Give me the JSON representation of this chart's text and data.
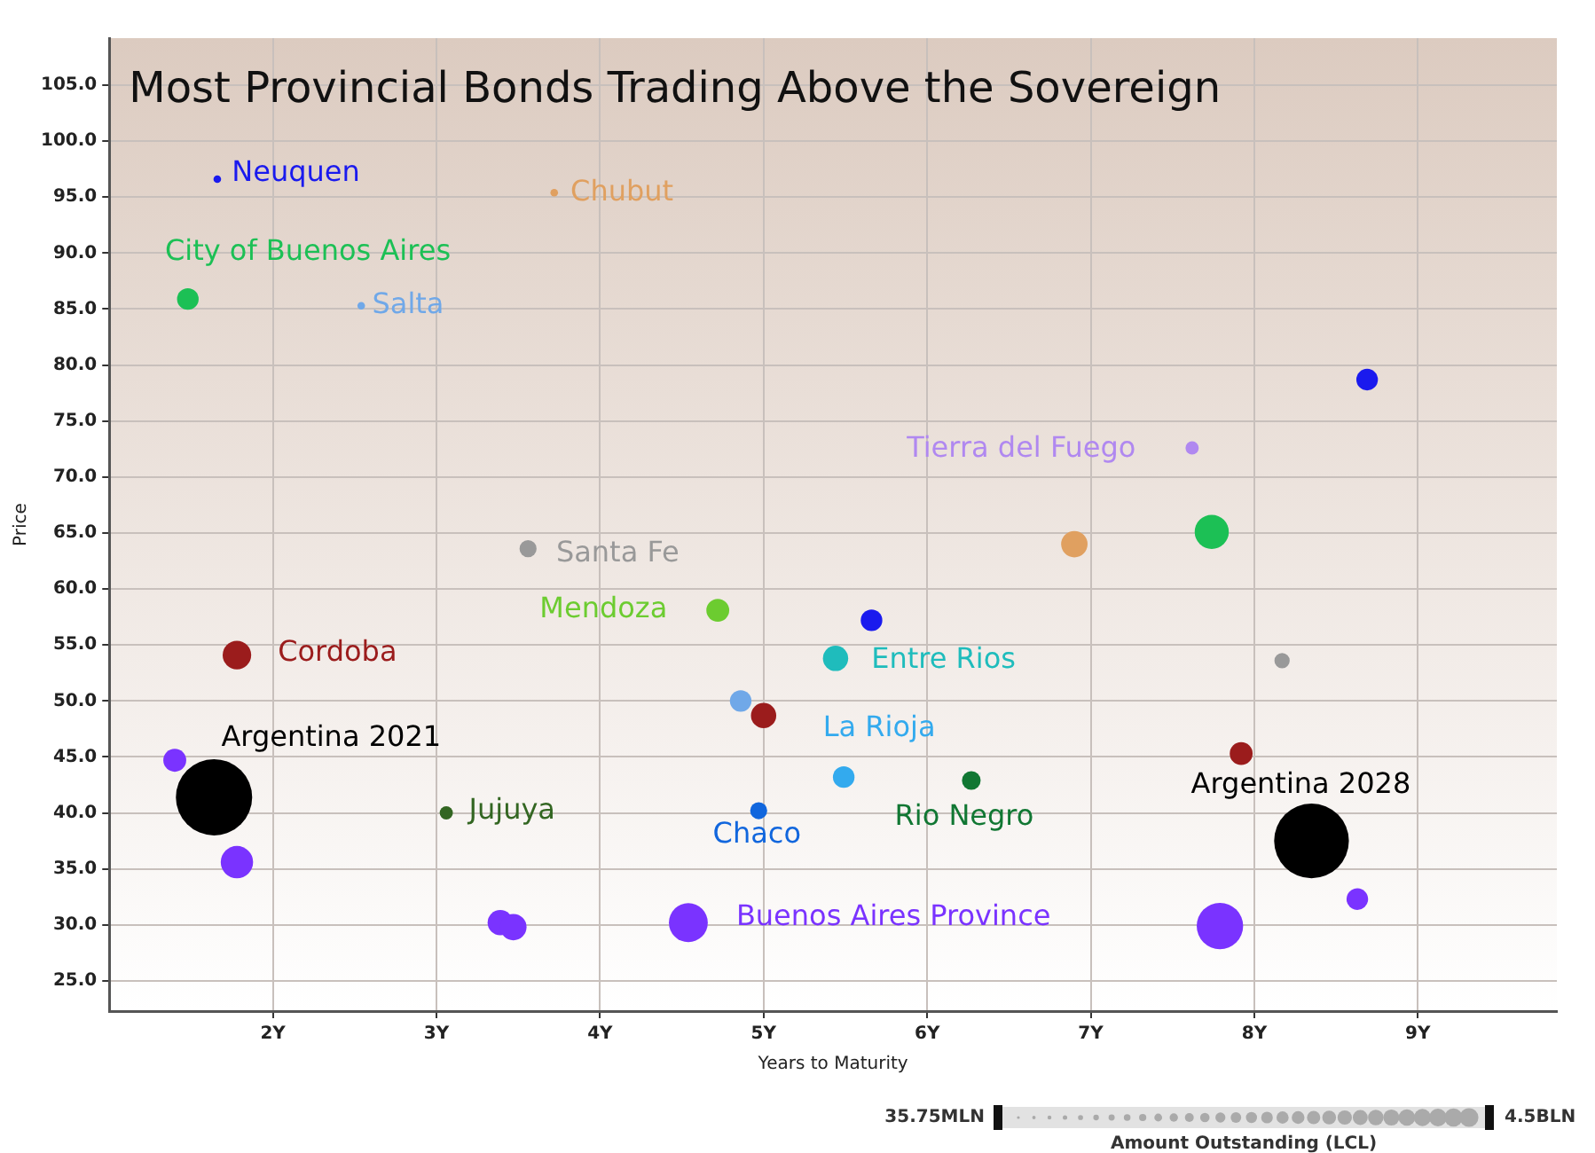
{
  "chart_data": {
    "type": "bubble",
    "title": "Most Provincial Bonds Trading Above the Sovereign",
    "xlabel": "Years to Maturity",
    "ylabel": "Price",
    "xlim": [
      1.0,
      9.85
    ],
    "ylim": [
      22.3,
      109.2
    ],
    "xticks": [
      {
        "value": 2,
        "label": "2Y"
      },
      {
        "value": 3,
        "label": "3Y"
      },
      {
        "value": 4,
        "label": "4Y"
      },
      {
        "value": 5,
        "label": "5Y"
      },
      {
        "value": 6,
        "label": "6Y"
      },
      {
        "value": 7,
        "label": "7Y"
      },
      {
        "value": 8,
        "label": "8Y"
      },
      {
        "value": 9,
        "label": "9Y"
      }
    ],
    "yticks": [
      {
        "value": 25,
        "label": "25.0"
      },
      {
        "value": 30,
        "label": "30.0"
      },
      {
        "value": 35,
        "label": "35.0"
      },
      {
        "value": 40,
        "label": "40.0"
      },
      {
        "value": 45,
        "label": "45.0"
      },
      {
        "value": 50,
        "label": "50.0"
      },
      {
        "value": 55,
        "label": "55.0"
      },
      {
        "value": 60,
        "label": "60.0"
      },
      {
        "value": 65,
        "label": "65.0"
      },
      {
        "value": 70,
        "label": "70.0"
      },
      {
        "value": 75,
        "label": "75.0"
      },
      {
        "value": 80,
        "label": "80.0"
      },
      {
        "value": 85,
        "label": "85.0"
      },
      {
        "value": 90,
        "label": "90.0"
      },
      {
        "value": 95,
        "label": "95.0"
      },
      {
        "value": 100,
        "label": "100.0"
      },
      {
        "value": 105,
        "label": "105.0"
      }
    ],
    "annotations": [
      "35.75MLN",
      "4.5BLN",
      "Amount Outstanding (LCL)"
    ],
    "grid": true,
    "series": [
      {
        "name": "Neuquen",
        "color": "#1a1aee",
        "x": [
          1.66,
          5.66,
          8.69
        ],
        "values": [
          96.6,
          57.2,
          78.7
        ],
        "sizes": [
          0.01,
          0.08,
          0.08
        ]
      },
      {
        "name": "Chubut",
        "color": "#e0a060",
        "x": [
          3.72,
          6.9
        ],
        "values": [
          95.4,
          64.0
        ],
        "sizes": [
          0.01,
          0.12
        ]
      },
      {
        "name": "City of Buenos Aires",
        "color": "#1cc055",
        "x": [
          1.48,
          7.74
        ],
        "values": [
          85.9,
          65.1
        ],
        "sizes": [
          0.08,
          0.2
        ]
      },
      {
        "name": "Salta",
        "color": "#70a8e8",
        "x": [
          2.54,
          4.86
        ],
        "values": [
          85.3,
          50.0
        ],
        "sizes": [
          0.01,
          0.08
        ]
      },
      {
        "name": "Tierra del Fuego",
        "color": "#b088f0",
        "x": [
          7.62
        ],
        "values": [
          72.6
        ],
        "sizes": [
          0.03
        ]
      },
      {
        "name": "Santa Fe",
        "color": "#999999",
        "x": [
          3.56,
          8.17
        ],
        "values": [
          63.6,
          53.6
        ],
        "sizes": [
          0.05,
          0.04
        ]
      },
      {
        "name": "Mendoza",
        "color": "#6ccc30",
        "x": [
          4.72
        ],
        "values": [
          58.1
        ],
        "sizes": [
          0.09
        ]
      },
      {
        "name": "Entre Rios",
        "color": "#1fbcbc",
        "x": [
          5.44
        ],
        "values": [
          53.8
        ],
        "sizes": [
          0.11
        ]
      },
      {
        "name": "Cordoba",
        "color": "#9b1c1c",
        "x": [
          1.78,
          5.0,
          7.92
        ],
        "values": [
          54.1,
          48.7,
          45.3
        ],
        "sizes": [
          0.14,
          0.11,
          0.09
        ]
      },
      {
        "name": "La Rioja",
        "color": "#33aaee",
        "x": [
          5.49
        ],
        "values": [
          43.2
        ],
        "sizes": [
          0.08
        ]
      },
      {
        "name": "Jujuya",
        "color": "#336622",
        "x": [
          3.06
        ],
        "values": [
          40.0
        ],
        "sizes": [
          0.03
        ]
      },
      {
        "name": "Chaco",
        "color": "#1166dd",
        "x": [
          4.97
        ],
        "values": [
          40.2
        ],
        "sizes": [
          0.05
        ]
      },
      {
        "name": "Rio Negro",
        "color": "#117733",
        "x": [
          6.27
        ],
        "values": [
          42.9
        ],
        "sizes": [
          0.06
        ]
      },
      {
        "name": "Buenos Aires Province",
        "color": "#7a33ff",
        "x": [
          4.54,
          1.4,
          1.78,
          3.39,
          3.47,
          7.79,
          8.63
        ],
        "values": [
          30.2,
          44.7,
          35.6,
          30.2,
          29.8,
          29.9,
          32.3
        ],
        "sizes": [
          0.26,
          0.09,
          0.18,
          0.11,
          0.12,
          0.37,
          0.08
        ]
      },
      {
        "name": "Argentina 2021",
        "color": "#000000",
        "x": [
          1.64
        ],
        "values": [
          41.4
        ],
        "sizes": [
          1
        ]
      },
      {
        "name": "Argentina 2028",
        "color": "#000000",
        "x": [
          8.35
        ],
        "values": [
          37.5
        ],
        "sizes": [
          0.96
        ]
      }
    ]
  }
}
